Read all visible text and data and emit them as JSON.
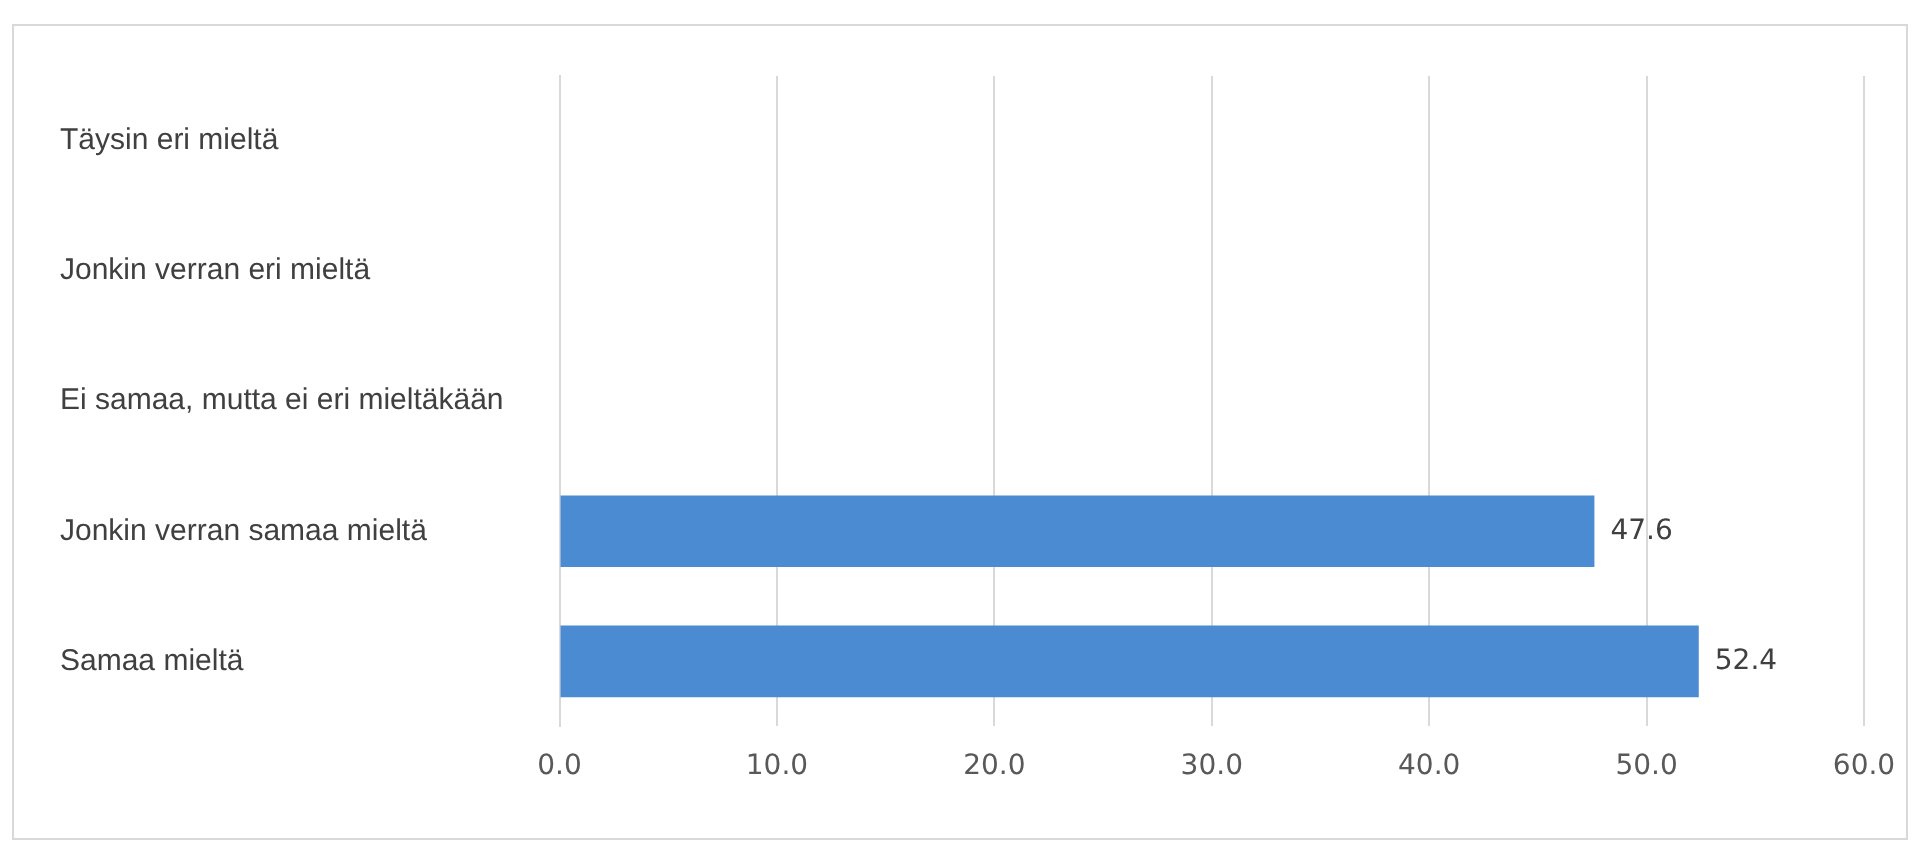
{
  "chart_data": {
    "type": "bar",
    "orientation": "horizontal",
    "categories": [
      "Täysin eri mieltä",
      "Jonkin verran eri mieltä",
      "Ei samaa, mutta ei eri mieltäkään",
      "Jonkin verran samaa mieltä",
      "Samaa mieltä"
    ],
    "values": [
      null,
      null,
      null,
      47.6,
      52.4
    ],
    "value_labels": [
      null,
      null,
      null,
      "47.6",
      "52.4"
    ],
    "color": "#4a8bd2",
    "xlim": [
      0,
      60
    ],
    "xticks": [
      {
        "value": 0,
        "label": "0.0"
      },
      {
        "value": 10,
        "label": "10.0"
      },
      {
        "value": 20,
        "label": "20.0"
      },
      {
        "value": 30,
        "label": "30.0"
      },
      {
        "value": 40,
        "label": "40.0"
      },
      {
        "value": 50,
        "label": "50.0"
      },
      {
        "value": 60,
        "label": "60.0"
      }
    ],
    "grid": "x",
    "legend": false
  }
}
